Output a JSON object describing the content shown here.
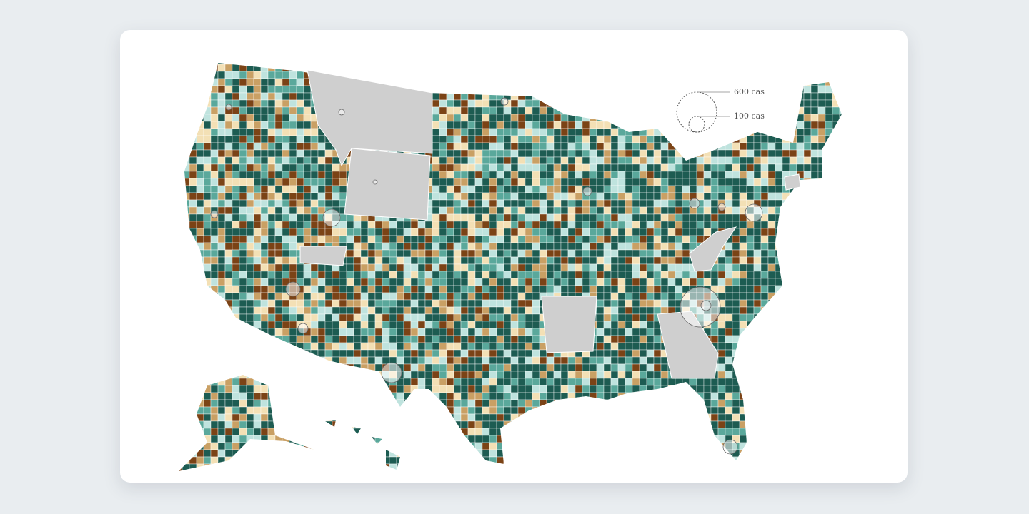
{
  "legend": {
    "large": "600 cas",
    "small": "100 cas"
  }
}
